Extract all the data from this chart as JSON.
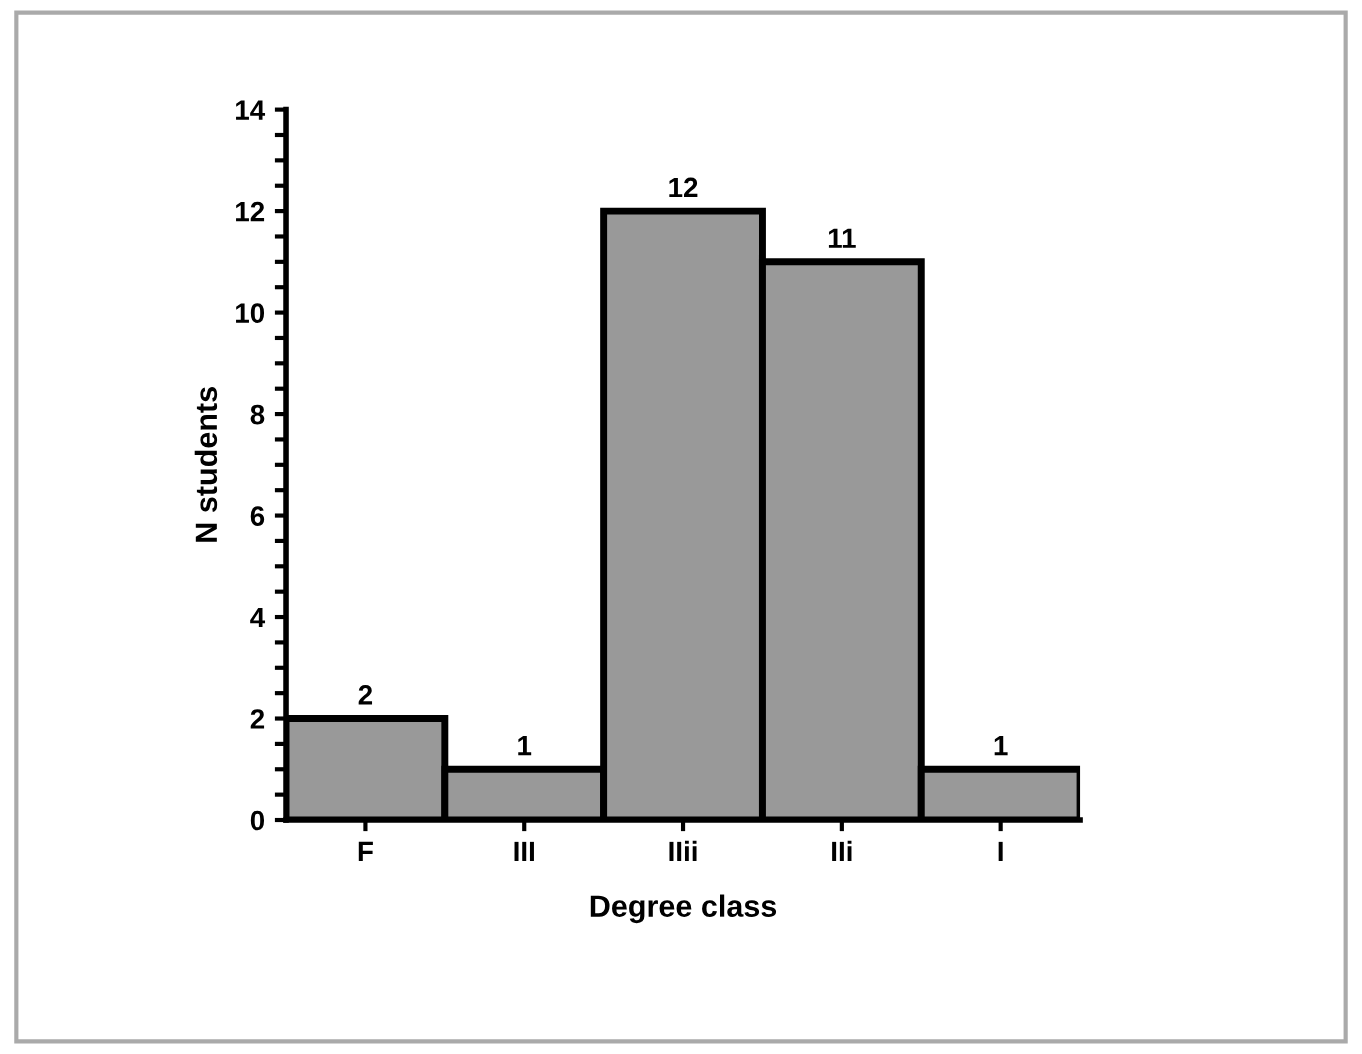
{
  "chart_data": {
    "type": "bar",
    "xlabel": "Degree class",
    "ylabel": "N students",
    "categories": [
      "F",
      "III",
      "IIii",
      "IIi",
      "I"
    ],
    "values": [
      2,
      1,
      12,
      11,
      1
    ],
    "color": "#999999",
    "data_labels": true,
    "ylim": [
      0,
      14
    ],
    "yticks": [
      0,
      {
        "value": 0.5,
        "label": null
      },
      {
        "value": 1,
        "label": null
      },
      {
        "value": 1.5,
        "label": null
      },
      2,
      {
        "value": 2.5,
        "label": null
      },
      {
        "value": 3,
        "label": null
      },
      {
        "value": 3.5,
        "label": null
      },
      4,
      {
        "value": 4.5,
        "label": null
      },
      {
        "value": 5,
        "label": null
      },
      {
        "value": 5.5,
        "label": null
      },
      6,
      {
        "value": 6.5,
        "label": null
      },
      {
        "value": 7,
        "label": null
      },
      {
        "value": 7.5,
        "label": null
      },
      8,
      {
        "value": 8.5,
        "label": null
      },
      {
        "value": 9,
        "label": null
      },
      {
        "value": 9.5,
        "label": null
      },
      10,
      {
        "value": 10.5,
        "label": null
      },
      {
        "value": 11,
        "label": null
      },
      {
        "value": 11.5,
        "label": null
      },
      12,
      {
        "value": 12.5,
        "label": null
      },
      {
        "value": 13,
        "label": null
      },
      {
        "value": 13.5,
        "label": null
      },
      14
    ],
    "grid": false,
    "legend": false
  }
}
